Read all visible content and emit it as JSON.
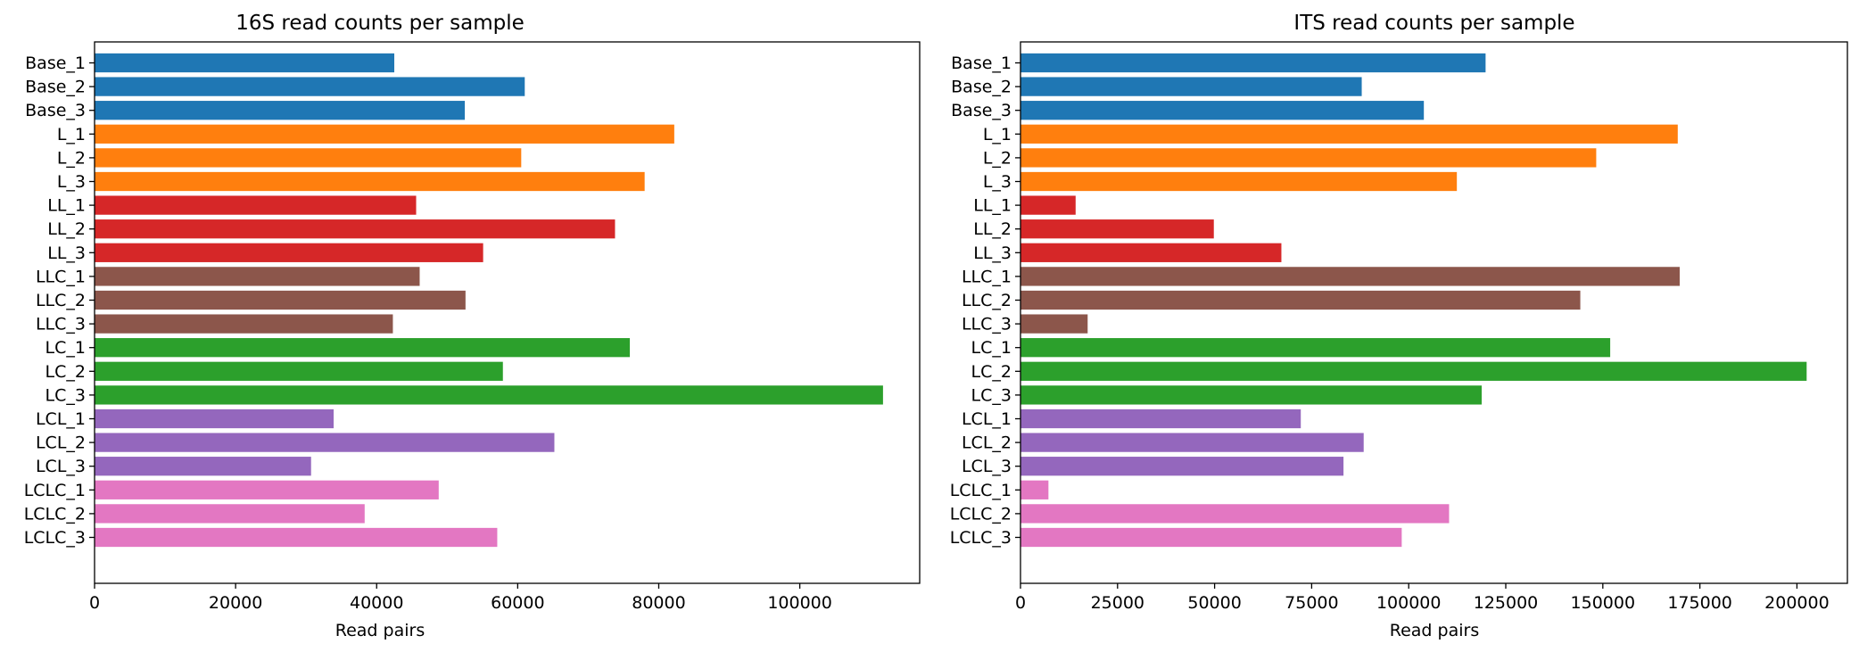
{
  "chart_data": [
    {
      "type": "bar",
      "orientation": "horizontal",
      "title": "16S read counts per sample",
      "xlabel": "Read pairs",
      "ylabel": "",
      "xlim": [
        0,
        117000
      ],
      "xticks": [
        0,
        20000,
        40000,
        60000,
        80000,
        100000
      ],
      "xtick_labels": [
        "0",
        "20000",
        "40000",
        "60000",
        "80000",
        "100000"
      ],
      "grid": false,
      "legend": "none",
      "categories": [
        "Base_1",
        "Base_2",
        "Base_3",
        "L_1",
        "L_2",
        "L_3",
        "LL_1",
        "LL_2",
        "LL_3",
        "LLC_1",
        "LLC_2",
        "LLC_3",
        "LC_1",
        "LC_2",
        "LC_3",
        "LCL_1",
        "LCL_2",
        "LCL_3",
        "LCLC_1",
        "LCLC_2",
        "LCLC_3"
      ],
      "values": [
        42500,
        61000,
        52500,
        82200,
        60500,
        78000,
        45600,
        73800,
        55100,
        46100,
        52600,
        42300,
        75900,
        57900,
        111800,
        33900,
        65200,
        30700,
        48800,
        38300,
        57100
      ],
      "bar_colors": [
        "#1f77b4",
        "#1f77b4",
        "#1f77b4",
        "#ff7f0e",
        "#ff7f0e",
        "#ff7f0e",
        "#d62728",
        "#d62728",
        "#d62728",
        "#8c564b",
        "#8c564b",
        "#8c564b",
        "#2ca02c",
        "#2ca02c",
        "#2ca02c",
        "#9467bd",
        "#9467bd",
        "#9467bd",
        "#e377c2",
        "#e377c2",
        "#e377c2"
      ]
    },
    {
      "type": "bar",
      "orientation": "horizontal",
      "title": "ITS read counts per sample",
      "xlabel": "Read pairs",
      "ylabel": "",
      "xlim": [
        0,
        213000
      ],
      "xticks": [
        0,
        25000,
        50000,
        75000,
        100000,
        125000,
        150000,
        175000,
        200000
      ],
      "xtick_labels": [
        "0",
        "25000",
        "50000",
        "75000",
        "100000",
        "125000",
        "150000",
        "175000",
        "200000"
      ],
      "grid": false,
      "legend": "none",
      "categories": [
        "Base_1",
        "Base_2",
        "Base_3",
        "L_1",
        "L_2",
        "L_3",
        "LL_1",
        "LL_2",
        "LL_3",
        "LLC_1",
        "LLC_2",
        "LLC_3",
        "LC_1",
        "LC_2",
        "LC_3",
        "LCL_1",
        "LCL_2",
        "LCL_3",
        "LCLC_1",
        "LCLC_2",
        "LCLC_3"
      ],
      "values": [
        119800,
        87900,
        103900,
        169300,
        148300,
        112400,
        14200,
        49800,
        67200,
        169800,
        144200,
        17300,
        151900,
        202500,
        118800,
        72200,
        88400,
        83200,
        7200,
        110400,
        98200
      ],
      "bar_colors": [
        "#1f77b4",
        "#1f77b4",
        "#1f77b4",
        "#ff7f0e",
        "#ff7f0e",
        "#ff7f0e",
        "#d62728",
        "#d62728",
        "#d62728",
        "#8c564b",
        "#8c564b",
        "#8c564b",
        "#2ca02c",
        "#2ca02c",
        "#2ca02c",
        "#9467bd",
        "#9467bd",
        "#9467bd",
        "#e377c2",
        "#e377c2",
        "#e377c2"
      ]
    }
  ]
}
